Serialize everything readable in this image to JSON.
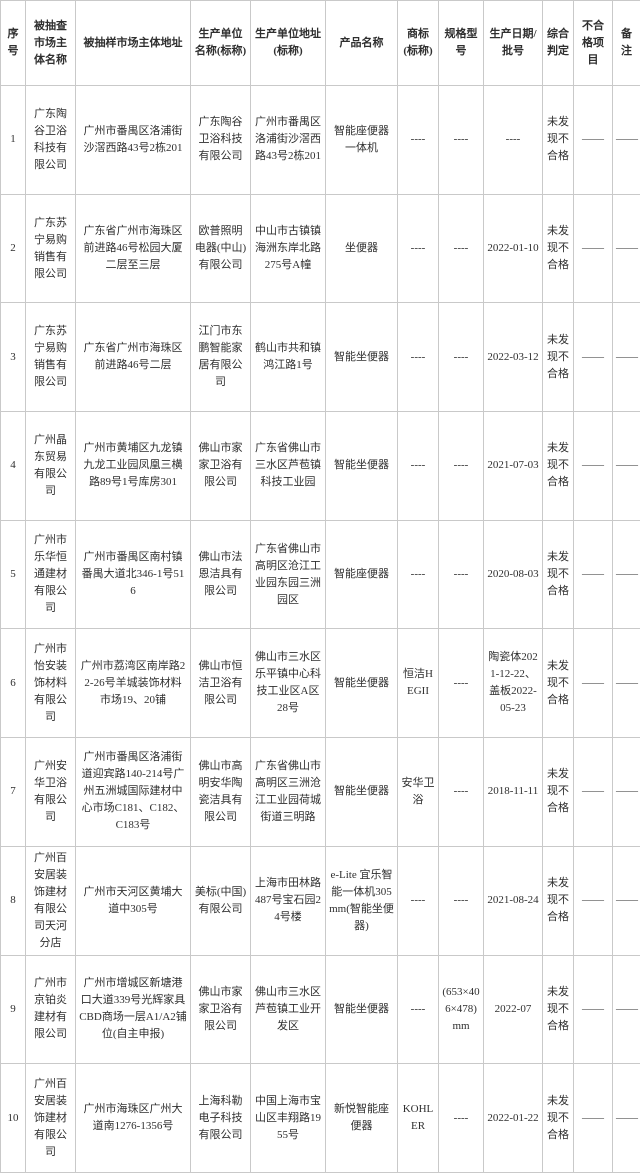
{
  "colors": {
    "border": "#c9c9c9",
    "text": "#2f2f2f",
    "background": "#ffffff"
  },
  "table": {
    "headers": [
      "序号",
      "被抽查市场主体名称",
      "被抽样市场主体地址",
      "生产单位名称(标称)",
      "生产单位地址(标称)",
      "产品名称",
      "商标(标称)",
      "规格型号",
      "生产日期/批号",
      "综合判定",
      "不合格项目",
      "备注"
    ],
    "rows": [
      {
        "cells": [
          "1",
          "广东陶谷卫浴科技有限公司",
          "广州市番禺区洛浦街沙滘西路43号2栋201",
          "广东陶谷卫浴科技有限公司",
          "广州市番禺区洛浦街沙滘西路43号2栋201",
          "智能座便器一体机",
          "----",
          "----",
          "----",
          "未发现不合格",
          "——",
          "——"
        ]
      },
      {
        "cells": [
          "2",
          "广东苏宁易购销售有限公司",
          "广东省广州市海珠区前进路46号松园大厦二层至三层",
          "欧普照明电器(中山)有限公司",
          "中山市古镇镇海洲东岸北路275号A幢",
          "坐便器",
          "----",
          "----",
          "2022-01-10",
          "未发现不合格",
          "——",
          "——"
        ]
      },
      {
        "cells": [
          "3",
          "广东苏宁易购销售有限公司",
          "广东省广州市海珠区前进路46号二层",
          "江门市东鹏智能家居有限公司",
          "鹤山市共和镇鸿江路1号",
          "智能坐便器",
          "----",
          "----",
          "2022-03-12",
          "未发现不合格",
          "——",
          "——"
        ]
      },
      {
        "cells": [
          "4",
          "广州晶东贸易有限公司",
          "广州市黄埔区九龙镇九龙工业园凤凰三横路89号1号库房301",
          "佛山市家家卫浴有限公司",
          "广东省佛山市三水区芦苞镇科技工业园",
          "智能坐便器",
          "----",
          "----",
          "2021-07-03",
          "未发现不合格",
          "——",
          "——"
        ]
      },
      {
        "cells": [
          "5",
          "广州市乐华恒通建材有限公司",
          "广州市番禺区南村镇番禺大道北346-1号516",
          "佛山市法恩洁具有限公司",
          "广东省佛山市高明区沧江工业园东园三洲园区",
          "智能座便器",
          "----",
          "----",
          "2020-08-03",
          "未发现不合格",
          "——",
          "——"
        ]
      },
      {
        "cells": [
          "6",
          "广州市怡安装饰材料有限公司",
          "广州市荔湾区南岸路22-26号羊城装饰材料市场19、20铺",
          "佛山市恒洁卫浴有限公司",
          "佛山市三水区乐平镇中心科技工业区A区28号",
          "智能坐便器",
          "恒洁HEGII",
          "----",
          "陶瓷体2021-12-22、盖板2022-05-23",
          "未发现不合格",
          "——",
          "——"
        ]
      },
      {
        "cells": [
          "7",
          "广州安华卫浴有限公司",
          "广州市番禺区洛浦街道迎宾路140-214号广州五洲城国际建材中心市场C181、C182、C183号",
          "佛山市高明安华陶瓷洁具有限公司",
          "广东省佛山市高明区三洲沧江工业园荷城街道三明路",
          "智能坐便器",
          "安华卫浴",
          "----",
          "2018-11-11",
          "未发现不合格",
          "——",
          "——"
        ]
      },
      {
        "cells": [
          "8",
          "广州百安居装饰建材有限公司天河分店",
          "广州市天河区黄埔大道中305号",
          "美标(中国)有限公司",
          "上海市田林路487号宝石园24号楼",
          "e-Lite 宜乐智能一体机305mm(智能坐便器)",
          "----",
          "----",
          "2021-08-24",
          "未发现不合格",
          "——",
          "——"
        ]
      },
      {
        "cells": [
          "9",
          "广州市京铂炎建材有限公司",
          "广州市增城区新塘港口大道339号光辉家具CBD商场一层A1/A2铺位(自主申报)",
          "佛山市家家卫浴有限公司",
          "佛山市三水区芦苞镇工业开发区",
          "智能坐便器",
          "----",
          "(653×406×478)mm",
          "2022-07",
          "未发现不合格",
          "——",
          "——"
        ]
      },
      {
        "cells": [
          "10",
          "广州百安居装饰建材有限公司",
          "广州市海珠区广州大道南1276-1356号",
          "上海科勒电子科技有限公司",
          "中国上海市宝山区丰翔路1955号",
          "新悦智能座便器",
          "KOHLER",
          "----",
          "2022-01-22",
          "未发现不合格",
          "——",
          "——"
        ]
      }
    ]
  }
}
